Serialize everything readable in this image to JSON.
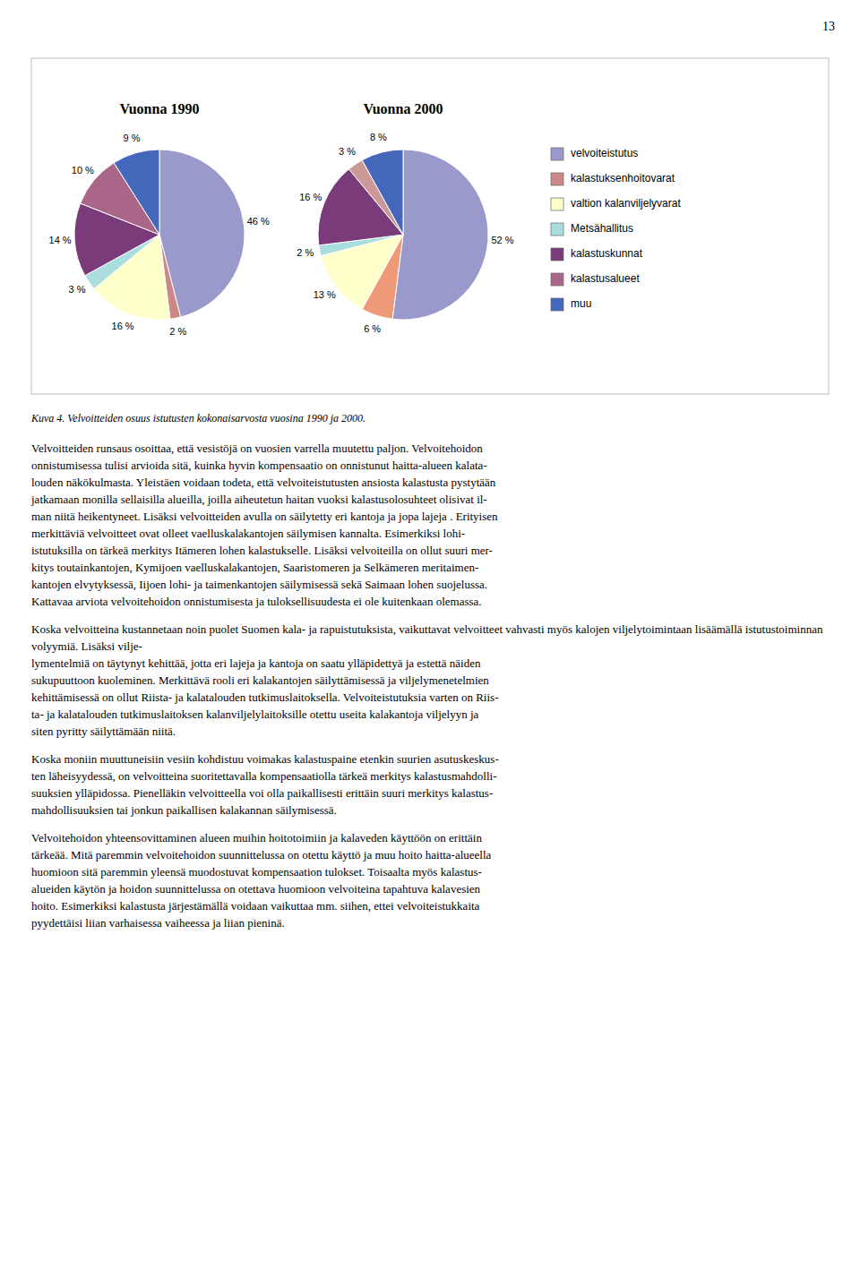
{
  "chart_data": [
    {
      "type": "pie",
      "title": "Vuonna 1990",
      "categories": [
        "velvoiteistutus",
        "kalastuksenhoitovarat",
        "valtion kalanviljelyvarat",
        "Metsähallitus",
        "kalastuskunnat",
        "kalastusalueet",
        "muu"
      ],
      "values": [
        46,
        2,
        16,
        3,
        14,
        10,
        9
      ],
      "value_labels": [
        "46 %",
        "2 %",
        "16 %",
        "3 %",
        "14 %",
        "10 %",
        "9 %"
      ],
      "colors": [
        "#9999cc",
        "#cc8888",
        "#ffffcc",
        "#aadddd",
        "#7a3b7a",
        "#aa6688",
        "#4466bb"
      ],
      "data_labels": true,
      "legend": "right"
    },
    {
      "type": "pie",
      "title": "Vuonna 2000",
      "categories": [
        "velvoiteistutus",
        "kalastuksenhoitovarat",
        "valtion kalanviljelyvarat",
        "Metsähallitus",
        "kalastuskunnat",
        "kalastusalueet",
        "muu"
      ],
      "values": [
        52,
        6,
        13,
        2,
        16,
        3,
        8
      ],
      "value_labels": [
        "52 %",
        "6 %",
        "13 %",
        "2 %",
        "16 %",
        "3 %",
        "8 %"
      ],
      "colors": [
        "#9999cc",
        "#ee9977",
        "#ffffcc",
        "#aadddd",
        "#7a3b7a",
        "#cc9999",
        "#4466bb"
      ],
      "data_labels": true
    }
  ],
  "page_number": "13",
  "caption": "Kuva 4. Velvoitteiden osuus istutusten kokonaisarvosta vuosina 1990 ja 2000.",
  "paragraphs": [
    "Velvoitteiden runsaus osoittaa, että vesistöjä on vuosien varrella muutettu paljon. Velvoitehoidon\nonnistumisessa tulisi arvioida sitä, kuinka hyvin kompensaatio on onnistunut haitta-alueen kalata-\nlouden näkökulmasta. Yleistäen voidaan todeta, että velvoiteistutusten ansiosta kalastusta pystytään\njatkamaan monilla sellaisilla alueilla, joilla aiheutetun haitan vuoksi kalastusolosuhteet olisivat il-\nman niitä heikentyneet. Lisäksi velvoitteiden avulla on säilytetty eri kantoja ja jopa lajeja . Erityisen\nmerkittäviä velvoitteet ovat olleet vaelluskalakantojen säilymisen kannalta. Esimerkiksi lohi-\nistutuksilla on tärkeä merkitys Itämeren lohen kalastukselle. Lisäksi velvoiteilla on ollut suuri mer-\nkitys toutainkantojen, Kymijoen vaelluskalakantojen, Saaristomeren ja Selkämeren meritaimen-\nkantojen elvytyksessä, Iijoen lohi- ja taimenkantojen säilymisessä sekä Saimaan lohen suojelussa.\nKattavaa arviota velvoitehoidon onnistumisesta ja tuloksellisuudesta ei ole kuitenkaan olemassa.",
    "Koska velvoitteina kustannetaan noin puolet Suomen kala- ja rapuistutuksista, vaikuttavat velvoitteet vahvasti myös kalojen viljelytoimintaan lisäämällä istutustoiminnan volyymiä. Lisäksi vilje-\nlymentelmiä on täytynyt kehittää, jotta eri lajeja ja kantoja on saatu ylläpidettyä ja estettä näiden\nsukupuuttoon kuoleminen. Merkittävä rooli eri kalakantojen säilyttämisessä ja viljelymenetelmien\nkehittämisessä on ollut Riista- ja kalatalouden tutkimuslaitoksella. Velvoiteistutuksia varten on Riis-\nta- ja kalatalouden tutkimuslaitoksen kalanviljelylaitoksille otettu useita kalakantoja viljelyyn ja\nsiten pyritty säilyttämään niitä.",
    "Koska moniin muuttuneisiin vesiin kohdistuu voimakas kalastuspaine etenkin suurien asutuskeskus-\nten läheisyydessä, on velvoitteina suoritettavalla kompensaatiolla tärkeä merkitys kalastusmahdolli-\nsuuksien ylläpidossa. Pienelläkin velvoitteella voi olla paikallisesti erittäin suuri merkitys kalastus-\nmahdollisuuksien tai jonkun paikallisen kalakannan säilymisessä.",
    "Velvoitehoidon yhteensovittaminen alueen muihin hoitotoimiin ja kalaveden käyttöön on erittäin\ntärkeää. Mitä paremmin velvoitehoidon suunnittelussa on otettu käyttö ja muu hoito haitta-alueella\nhuomioon sitä paremmin yleensä muodostuvat kompensaation tulokset. Toisaalta myös kalastus-\nalueiden käytön ja hoidon suunnittelussa on otettava huomioon velvoiteina tapahtuva kalavesien\nhoito. Esimerkiksi kalastusta järjestämällä voidaan vaikuttaa mm. siihen, ettei velvoiteistukkaita\npyydettäisi liian varhaisessa vaiheessa ja liian pieninä."
  ]
}
